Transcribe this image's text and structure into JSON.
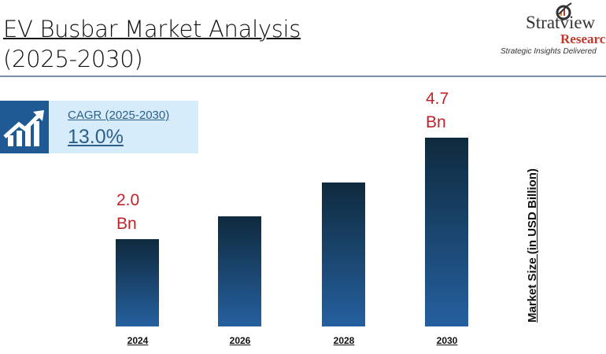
{
  "header": {
    "title_line1": "EV Busbar Market Analysis",
    "title_line2": "(2025-2030)"
  },
  "logo": {
    "name": "Stratview",
    "registered": "®",
    "sub": "Research",
    "tagline": "Strategic Insights Delivered"
  },
  "cagr": {
    "label": "CAGR (2025-2030)",
    "value": "13.0%",
    "icon": "growth-chart-icon"
  },
  "colors": {
    "bar_top": "#0f2a3d",
    "bar_bottom": "#25609f",
    "label": "#c0222a",
    "accent": "#1f5a94"
  },
  "chart_data": {
    "type": "bar",
    "categories": [
      "2024",
      "2026",
      "2028",
      "2030"
    ],
    "values": [
      2.0,
      2.6,
      3.5,
      4.7
    ],
    "data_labels": [
      {
        "index": 0,
        "value": "2.0",
        "unit": "Bn"
      },
      {
        "index": 3,
        "value": "4.7",
        "unit": "Bn"
      }
    ],
    "xlabel": "",
    "ylabel": "Market Size (in  USD Billion)",
    "grid": false
  }
}
